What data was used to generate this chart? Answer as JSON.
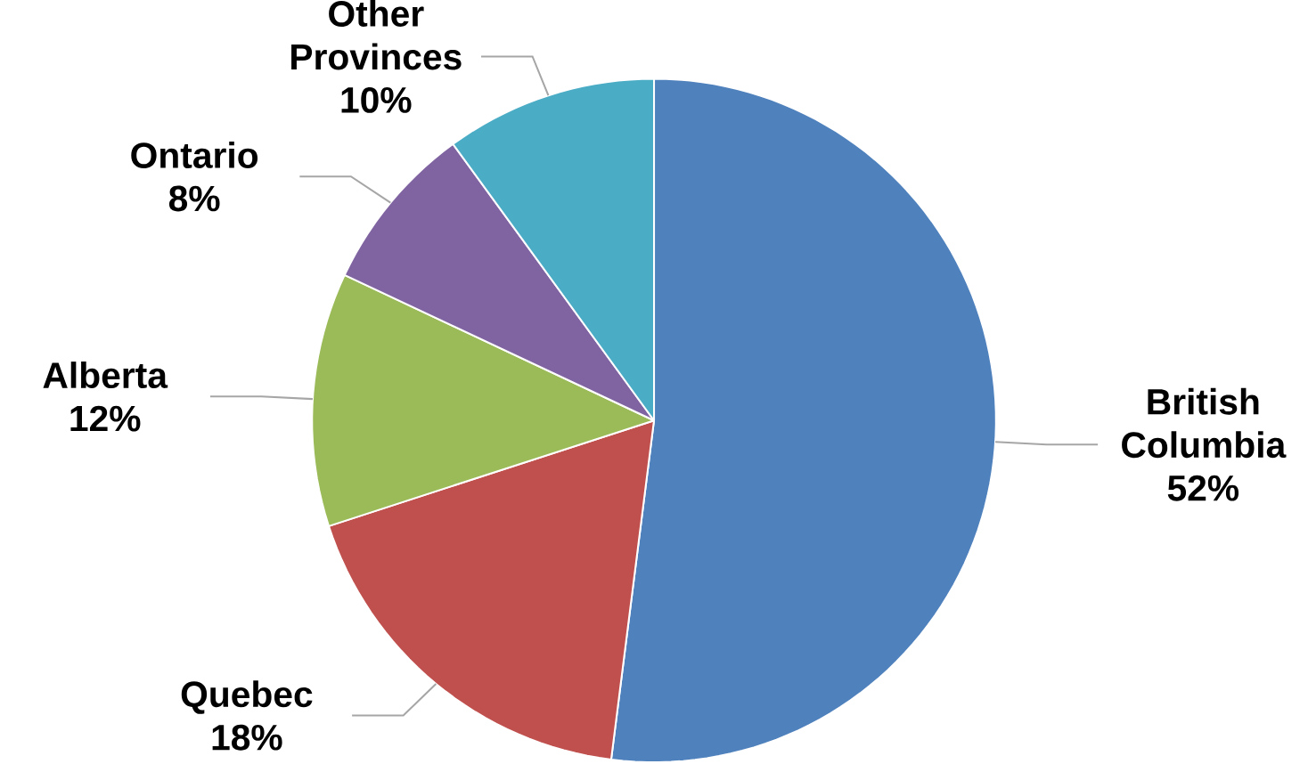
{
  "chart_data": {
    "type": "pie",
    "categories": [
      "British Columbia",
      "Quebec",
      "Alberta",
      "Ontario",
      "Other Provinces"
    ],
    "values": [
      52,
      18,
      12,
      8,
      10
    ],
    "value_labels": [
      "52%",
      "18%",
      "12%",
      "8%",
      "10%"
    ],
    "colors": [
      "#4f81bd",
      "#c0504d",
      "#9bbb59",
      "#8064a2",
      "#4bacc6"
    ]
  }
}
